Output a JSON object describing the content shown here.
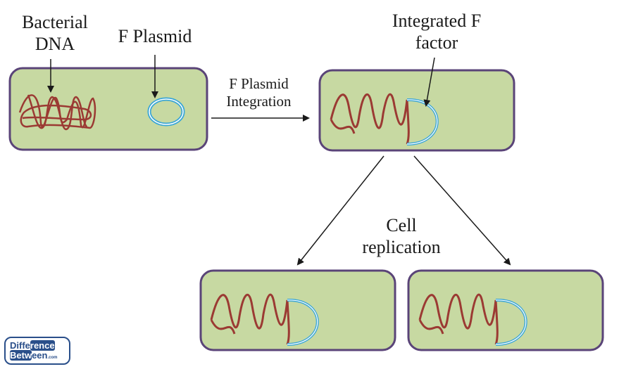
{
  "labels": {
    "bacterial_dna_line1": "Bacterial",
    "bacterial_dna_line2": "DNA",
    "f_plasmid": "F Plasmid",
    "f_plasmid_integration_line1": "F Plasmid",
    "f_plasmid_integration_line2": "Integration",
    "integrated_f_factor_line1": "Integrated F",
    "integrated_f_factor_line2": "factor",
    "cell_replication_line1": "Cell",
    "cell_replication_line2": "replication"
  },
  "logo": {
    "part1": "Diffe",
    "part2": "rence",
    "part3": "Betw",
    "part4": "een",
    "part5": ".com"
  },
  "colors": {
    "cell_fill": "#c7d9a2",
    "cell_border": "#5a4478",
    "dna": "#9b3a33",
    "plasmid": "#3aa6d6",
    "arrow": "#1a1a1a"
  }
}
